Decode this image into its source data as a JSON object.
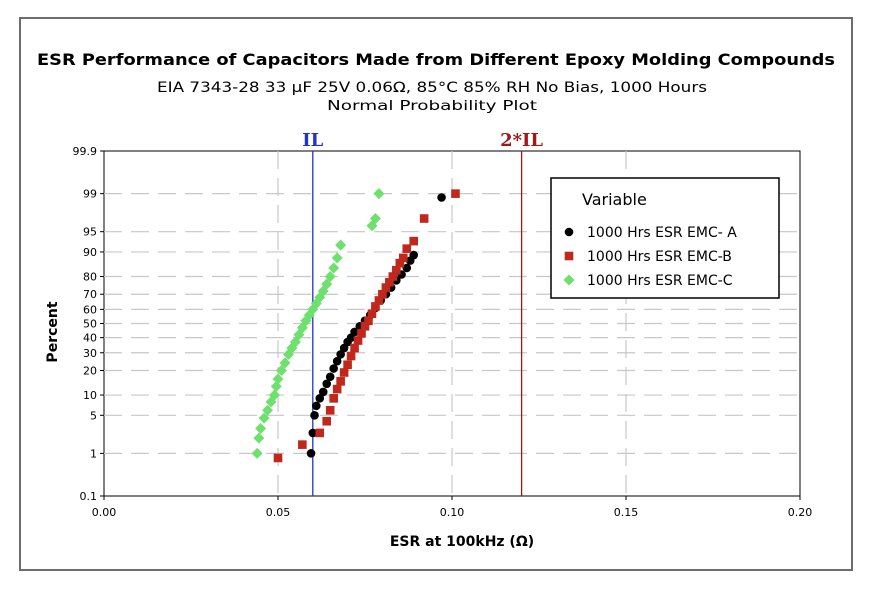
{
  "chart_data": {
    "type": "scatter",
    "title": "ESR Performance of Capacitors Made from Different Epoxy Molding Compounds",
    "subtitle": "EIA 7343-28 33 µF 25V  0.06Ω, 85°C 85% RH No Bias, 1000 Hours",
    "subtitle2": "Normal Probability Plot",
    "xlabel": "ESR at 100kHz (Ω)",
    "ylabel": "Percent",
    "xlim": [
      0.0,
      0.2
    ],
    "ylim": [
      0.1,
      99.9
    ],
    "y_scale": "normal-probability",
    "x_ticks": [
      0.0,
      0.05,
      0.1,
      0.15,
      0.2
    ],
    "x_tick_labels": [
      "0.00",
      "0.05",
      "0.10",
      "0.15",
      "0.20"
    ],
    "y_ticks": [
      0.1,
      1,
      5,
      10,
      20,
      30,
      40,
      50,
      60,
      70,
      80,
      90,
      95,
      99,
      99.9
    ],
    "y_tick_labels": [
      "0.1",
      "1",
      "5",
      "10",
      "20",
      "30",
      "40",
      "50",
      "60",
      "70",
      "80",
      "90",
      "95",
      "99",
      "99.9"
    ],
    "grid": true,
    "legend": {
      "title": "Variable",
      "position": "top-right"
    },
    "reference_lines": [
      {
        "label": "IL",
        "x": 0.06,
        "color": "#2233cc"
      },
      {
        "label": "2*IL",
        "x": 0.12,
        "color": "#a01818"
      }
    ],
    "series": [
      {
        "name": "1000 Hrs ESR EMC- A",
        "marker": "circle",
        "color": "#000000",
        "x": [
          0.0595,
          0.06,
          0.0605,
          0.061,
          0.062,
          0.063,
          0.064,
          0.065,
          0.066,
          0.067,
          0.068,
          0.069,
          0.07,
          0.071,
          0.072,
          0.0735,
          0.075,
          0.0765,
          0.078,
          0.0795,
          0.081,
          0.0825,
          0.084,
          0.0855,
          0.087,
          0.088,
          0.089,
          0.097
        ],
        "y": [
          1,
          2.5,
          5,
          7,
          9,
          11,
          14,
          17,
          21,
          25,
          29,
          33,
          37,
          40,
          44,
          48,
          52,
          56,
          61,
          66,
          70,
          74,
          78,
          81,
          84,
          87,
          89,
          98.8
        ]
      },
      {
        "name": "1000 Hrs ESR EMC-B",
        "marker": "square",
        "color": "#c0281e",
        "x": [
          0.05,
          0.057,
          0.062,
          0.064,
          0.065,
          0.066,
          0.067,
          0.068,
          0.069,
          0.07,
          0.071,
          0.072,
          0.073,
          0.074,
          0.075,
          0.076,
          0.077,
          0.078,
          0.079,
          0.08,
          0.081,
          0.082,
          0.083,
          0.084,
          0.085,
          0.086,
          0.087,
          0.089,
          0.092,
          0.101
        ],
        "y": [
          0.8,
          1.5,
          2.5,
          4,
          6,
          9,
          12,
          15,
          19,
          23,
          28,
          33,
          38,
          43,
          48,
          52,
          57,
          62,
          66,
          70,
          74,
          77,
          80,
          83,
          86,
          88,
          91,
          93,
          97,
          99
        ]
      },
      {
        "name": "1000 Hrs ESR EMC-C",
        "marker": "diamond",
        "color": "#6ee06e",
        "x": [
          0.044,
          0.0445,
          0.045,
          0.046,
          0.047,
          0.048,
          0.049,
          0.0495,
          0.05,
          0.051,
          0.052,
          0.053,
          0.054,
          0.055,
          0.056,
          0.057,
          0.058,
          0.059,
          0.06,
          0.061,
          0.062,
          0.063,
          0.064,
          0.065,
          0.066,
          0.067,
          0.068,
          0.077,
          0.078,
          0.079
        ],
        "y": [
          1,
          2,
          3,
          4.5,
          6,
          8,
          10,
          13,
          16,
          20,
          24,
          29,
          33,
          37,
          42,
          47,
          52,
          56,
          60,
          64,
          68,
          72,
          76,
          80,
          84,
          88,
          92,
          96,
          97,
          99
        ]
      }
    ]
  }
}
